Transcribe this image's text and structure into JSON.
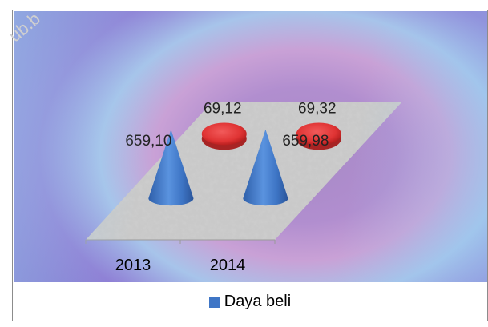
{
  "watermark_text": "ub.b",
  "chart_data": {
    "type": "bar",
    "style": "3d-cone",
    "categories": [
      "2013",
      "2014"
    ],
    "series": [
      {
        "name": "Daya beli",
        "color": "#3f76c6",
        "values": [
          659.1,
          659.98
        ],
        "labels": [
          "659,10",
          "659,98"
        ]
      },
      {
        "name": "",
        "color": "#e53b3b",
        "values": [
          69.12,
          69.32
        ],
        "labels": [
          "69,12",
          "69,32"
        ]
      }
    ],
    "title": "",
    "xlabel": "",
    "ylabel": "",
    "grid": false,
    "legend_position": "bottom",
    "legend": [
      {
        "label": "Daya beli",
        "color": "#3f76c6"
      }
    ]
  }
}
